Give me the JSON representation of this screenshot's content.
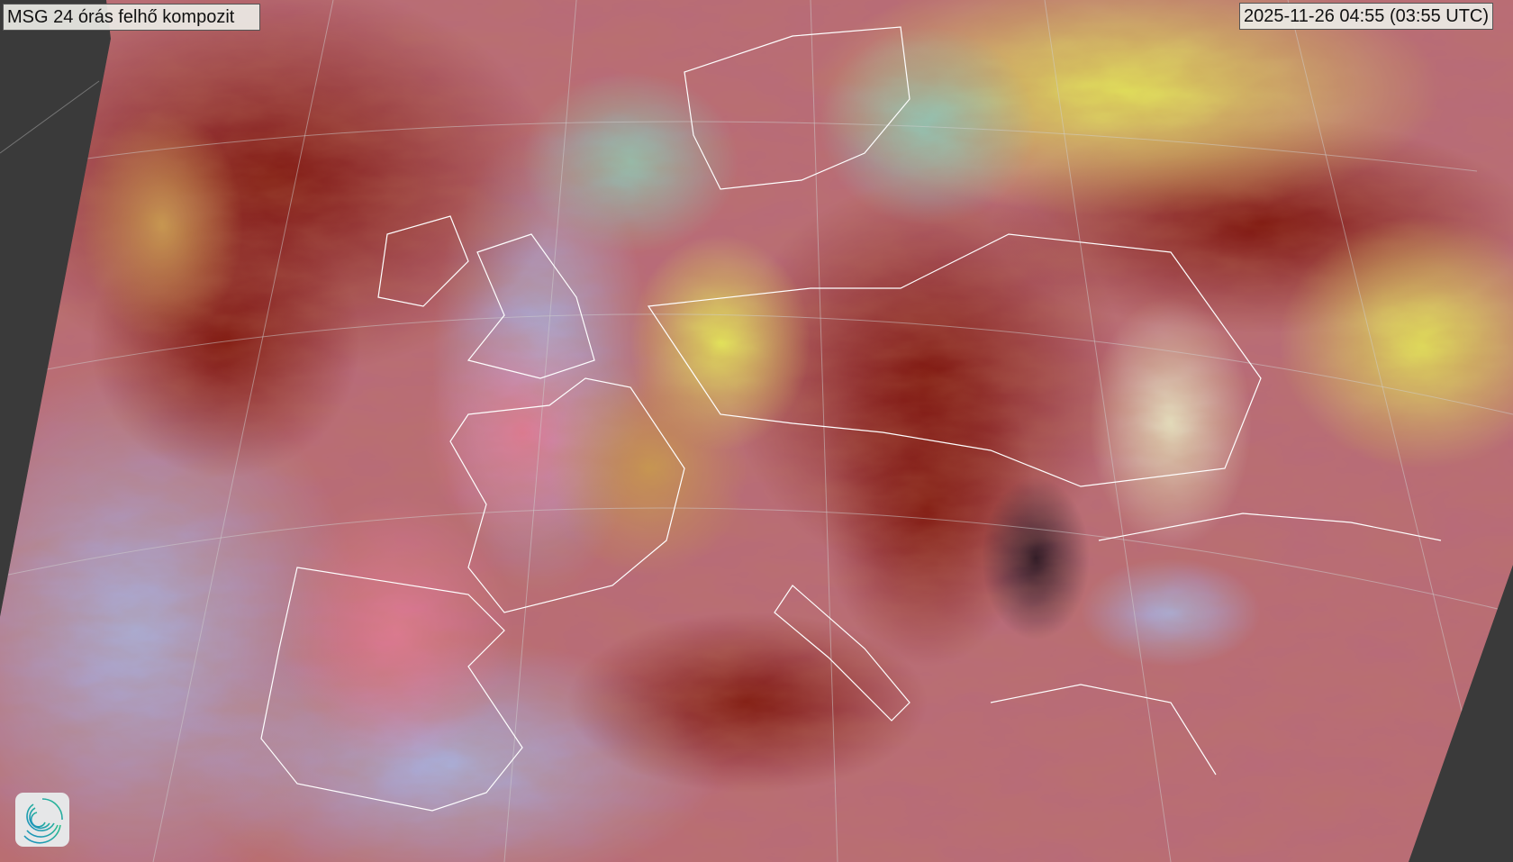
{
  "map": {
    "title": "MSG 24 órás felhő kompozit",
    "timestamp": "2025-11-26 04:55 (03:55 UTC)",
    "logo_icon": "swirl-logo-icon",
    "colors": {
      "background": "#3a3a3a",
      "dust_cloud_red": "#8b1a10",
      "clear_land_pink": "#d8708a",
      "sea_lavender": "#9aa6e0",
      "low_cloud_yellow": "#d8e050",
      "coastline": "#ffffff"
    }
  }
}
